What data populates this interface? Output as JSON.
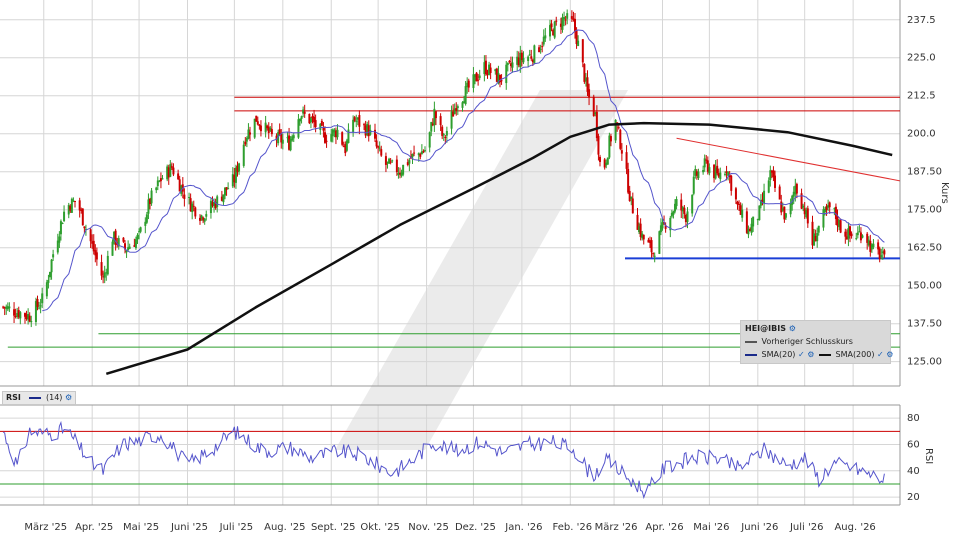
{
  "chart_data": [
    {
      "type": "candlestick",
      "symbol": "HEI@IBIS",
      "ylabel": "Kurs",
      "ylim": [
        117,
        244
      ],
      "yticks": [
        125.0,
        137.5,
        150.0,
        162.5,
        175.0,
        187.5,
        200.0,
        212.5,
        225.0,
        237.5
      ],
      "ytick_labels": [
        "125.00",
        "137.50",
        "150.00",
        "162.50",
        "175.00",
        "187.50",
        "200.0",
        "212.5",
        "225.0",
        "237.5"
      ],
      "x_start": "2025-02-01",
      "x_end": "2026-08-31",
      "xtick_labels": [
        {
          "date": "2025-03-01",
          "label": "März '25"
        },
        {
          "date": "2025-04-01",
          "label": "Apr. '25"
        },
        {
          "date": "2025-05-01",
          "label": "Mai '25"
        },
        {
          "date": "2025-06-01",
          "label": "Juni '25"
        },
        {
          "date": "2025-07-01",
          "label": "Juli '25"
        },
        {
          "date": "2025-08-01",
          "label": "Aug. '25"
        },
        {
          "date": "2025-09-01",
          "label": "Sept. '25"
        },
        {
          "date": "2025-10-01",
          "label": "Okt. '25"
        },
        {
          "date": "2025-11-01",
          "label": "Nov. '25"
        },
        {
          "date": "2025-12-01",
          "label": "Dez. '25"
        },
        {
          "date": "2026-01-01",
          "label": "Jan. '26"
        },
        {
          "date": "2026-02-01",
          "label": "Feb. '26"
        },
        {
          "date": "2026-03-01",
          "label": "März '26"
        },
        {
          "date": "2026-04-01",
          "label": "Apr. '26"
        },
        {
          "date": "2026-05-01",
          "label": "Mai '26"
        },
        {
          "date": "2026-06-01",
          "label": "Juni '26"
        },
        {
          "date": "2026-07-01",
          "label": "Juli '26"
        },
        {
          "date": "2026-08-01",
          "label": "Aug. '26"
        }
      ],
      "close_anchors": [
        {
          "date": "2025-02-03",
          "close": 143
        },
        {
          "date": "2025-02-20",
          "close": 140
        },
        {
          "date": "2025-03-01",
          "close": 146
        },
        {
          "date": "2025-03-08",
          "close": 163
        },
        {
          "date": "2025-03-15",
          "close": 176
        },
        {
          "date": "2025-03-22",
          "close": 178
        },
        {
          "date": "2025-04-03",
          "close": 160
        },
        {
          "date": "2025-04-08",
          "close": 152
        },
        {
          "date": "2025-04-14",
          "close": 166
        },
        {
          "date": "2025-04-22",
          "close": 162
        },
        {
          "date": "2025-05-01",
          "close": 166
        },
        {
          "date": "2025-05-08",
          "close": 178
        },
        {
          "date": "2025-05-15",
          "close": 185
        },
        {
          "date": "2025-05-22",
          "close": 189
        },
        {
          "date": "2025-06-01",
          "close": 178
        },
        {
          "date": "2025-06-10",
          "close": 173
        },
        {
          "date": "2025-06-20",
          "close": 178
        },
        {
          "date": "2025-07-01",
          "close": 185
        },
        {
          "date": "2025-07-08",
          "close": 199
        },
        {
          "date": "2025-07-15",
          "close": 205
        },
        {
          "date": "2025-07-25",
          "close": 199
        },
        {
          "date": "2025-08-05",
          "close": 197
        },
        {
          "date": "2025-08-12",
          "close": 207
        },
        {
          "date": "2025-08-20",
          "close": 204
        },
        {
          "date": "2025-08-28",
          "close": 199
        },
        {
          "date": "2025-09-05",
          "close": 201
        },
        {
          "date": "2025-09-10",
          "close": 195
        },
        {
          "date": "2025-09-15",
          "close": 205
        },
        {
          "date": "2025-09-25",
          "close": 201
        },
        {
          "date": "2025-10-05",
          "close": 190
        },
        {
          "date": "2025-10-15",
          "close": 188
        },
        {
          "date": "2025-10-22",
          "close": 192
        },
        {
          "date": "2025-11-01",
          "close": 195
        },
        {
          "date": "2025-11-06",
          "close": 207
        },
        {
          "date": "2025-11-12",
          "close": 198
        },
        {
          "date": "2025-11-20",
          "close": 210
        },
        {
          "date": "2025-11-28",
          "close": 215
        },
        {
          "date": "2025-12-08",
          "close": 222
        },
        {
          "date": "2025-12-18",
          "close": 218
        },
        {
          "date": "2025-12-28",
          "close": 224
        },
        {
          "date": "2026-01-08",
          "close": 226
        },
        {
          "date": "2026-01-18",
          "close": 233
        },
        {
          "date": "2026-01-28",
          "close": 238
        },
        {
          "date": "2026-02-03",
          "close": 236
        },
        {
          "date": "2026-02-08",
          "close": 225
        },
        {
          "date": "2026-02-12",
          "close": 213
        },
        {
          "date": "2026-02-17",
          "close": 206
        },
        {
          "date": "2026-02-21",
          "close": 185
        },
        {
          "date": "2026-02-26",
          "close": 197
        },
        {
          "date": "2026-03-02",
          "close": 204
        },
        {
          "date": "2026-03-06",
          "close": 195
        },
        {
          "date": "2026-03-12",
          "close": 177
        },
        {
          "date": "2026-03-19",
          "close": 166
        },
        {
          "date": "2026-03-26",
          "close": 161
        },
        {
          "date": "2026-04-02",
          "close": 170
        },
        {
          "date": "2026-04-10",
          "close": 177
        },
        {
          "date": "2026-04-16",
          "close": 173
        },
        {
          "date": "2026-04-22",
          "close": 186
        },
        {
          "date": "2026-04-29",
          "close": 190
        },
        {
          "date": "2026-05-06",
          "close": 186
        },
        {
          "date": "2026-05-12",
          "close": 189
        },
        {
          "date": "2026-05-19",
          "close": 176
        },
        {
          "date": "2026-05-26",
          "close": 168
        },
        {
          "date": "2026-06-02",
          "close": 174
        },
        {
          "date": "2026-06-09",
          "close": 187
        },
        {
          "date": "2026-06-15",
          "close": 177
        },
        {
          "date": "2026-06-20",
          "close": 171
        },
        {
          "date": "2026-06-25",
          "close": 183
        },
        {
          "date": "2026-07-01",
          "close": 175
        },
        {
          "date": "2026-07-06",
          "close": 164
        },
        {
          "date": "2026-07-12",
          "close": 172
        },
        {
          "date": "2026-07-18",
          "close": 176
        },
        {
          "date": "2026-07-25",
          "close": 168
        },
        {
          "date": "2026-08-01",
          "close": 166
        },
        {
          "date": "2026-08-08",
          "close": 168
        },
        {
          "date": "2026-08-13",
          "close": 162
        },
        {
          "date": "2026-08-19",
          "close": 160
        },
        {
          "date": "2026-08-23",
          "close": 156
        }
      ],
      "sma200_anchors": [
        {
          "date": "2025-04-10",
          "value": 121
        },
        {
          "date": "2025-06-01",
          "value": 129
        },
        {
          "date": "2025-07-15",
          "value": 143
        },
        {
          "date": "2025-09-01",
          "value": 157
        },
        {
          "date": "2025-10-15",
          "value": 170
        },
        {
          "date": "2025-12-01",
          "value": 182
        },
        {
          "date": "2026-01-08",
          "value": 192
        },
        {
          "date": "2026-02-01",
          "value": 199
        },
        {
          "date": "2026-02-26",
          "value": 203
        },
        {
          "date": "2026-03-20",
          "value": 203.5
        },
        {
          "date": "2026-05-01",
          "value": 203
        },
        {
          "date": "2026-06-20",
          "value": 200.5
        },
        {
          "date": "2026-08-01",
          "value": 196
        },
        {
          "date": "2026-08-26",
          "value": 193
        }
      ],
      "horizontal_lines": [
        {
          "value": 212.0,
          "color": "#cc0000"
        },
        {
          "value": 207.5,
          "color": "#cc0000"
        },
        {
          "value": 159.0,
          "color": "#1a3fd6"
        },
        {
          "value": 134.2,
          "color": "#2e9e2e"
        },
        {
          "value": 129.8,
          "color": "#2e9e2e"
        }
      ],
      "trendline": {
        "start": {
          "date": "2026-04-10",
          "value": 198.5
        },
        "end": {
          "date": "2026-08-31",
          "value": 184.5
        },
        "color": "#e03030"
      },
      "legend": {
        "title": "HEI@IBIS",
        "items": [
          "Vorheriger Schlusskurs",
          "SMA(20)",
          "SMA(200)"
        ]
      },
      "colors": {
        "up": "#2e9e2e",
        "down": "#cc0000",
        "sma20": "#5555cc",
        "sma200": "#111111",
        "grid": "#d6d6d6"
      }
    },
    {
      "type": "line",
      "panel": "RSI",
      "title": "RSI",
      "legend": "(14)",
      "ylabel": "RSI",
      "ylim": [
        14,
        90
      ],
      "yticks": [
        20,
        40,
        60,
        80
      ],
      "ytick_labels": [
        "20",
        "40",
        "60",
        "80"
      ],
      "reference_lines": [
        {
          "value": 70,
          "color": "#cc0000"
        },
        {
          "value": 30,
          "color": "#2e9e2e"
        }
      ],
      "rsi_anchors": [
        {
          "date": "2025-02-01",
          "value": 76
        },
        {
          "date": "2025-02-12",
          "value": 44
        },
        {
          "date": "2025-02-20",
          "value": 70
        },
        {
          "date": "2025-03-05",
          "value": 68
        },
        {
          "date": "2025-03-15",
          "value": 72
        },
        {
          "date": "2025-04-01",
          "value": 45
        },
        {
          "date": "2025-04-08",
          "value": 40
        },
        {
          "date": "2025-04-20",
          "value": 60
        },
        {
          "date": "2025-05-01",
          "value": 63
        },
        {
          "date": "2025-05-15",
          "value": 68
        },
        {
          "date": "2025-06-01",
          "value": 45
        },
        {
          "date": "2025-06-15",
          "value": 55
        },
        {
          "date": "2025-07-01",
          "value": 70
        },
        {
          "date": "2025-07-20",
          "value": 55
        },
        {
          "date": "2025-08-05",
          "value": 58
        },
        {
          "date": "2025-08-20",
          "value": 50
        },
        {
          "date": "2025-09-05",
          "value": 55
        },
        {
          "date": "2025-09-20",
          "value": 52
        },
        {
          "date": "2025-10-10",
          "value": 38
        },
        {
          "date": "2025-10-25",
          "value": 50
        },
        {
          "date": "2025-11-05",
          "value": 62
        },
        {
          "date": "2025-11-20",
          "value": 55
        },
        {
          "date": "2025-12-05",
          "value": 62
        },
        {
          "date": "2025-12-20",
          "value": 54
        },
        {
          "date": "2026-01-05",
          "value": 60
        },
        {
          "date": "2026-01-20",
          "value": 62
        },
        {
          "date": "2026-02-03",
          "value": 57
        },
        {
          "date": "2026-02-15",
          "value": 36
        },
        {
          "date": "2026-02-25",
          "value": 48
        },
        {
          "date": "2026-03-10",
          "value": 34
        },
        {
          "date": "2026-03-22",
          "value": 24
        },
        {
          "date": "2026-04-02",
          "value": 42
        },
        {
          "date": "2026-04-20",
          "value": 50
        },
        {
          "date": "2026-05-05",
          "value": 50
        },
        {
          "date": "2026-05-20",
          "value": 42
        },
        {
          "date": "2026-06-05",
          "value": 56
        },
        {
          "date": "2026-06-20",
          "value": 44
        },
        {
          "date": "2026-07-01",
          "value": 50
        },
        {
          "date": "2026-07-10",
          "value": 34
        },
        {
          "date": "2026-07-20",
          "value": 46
        },
        {
          "date": "2026-08-01",
          "value": 42
        },
        {
          "date": "2026-08-15",
          "value": 36
        },
        {
          "date": "2026-08-23",
          "value": 32
        }
      ]
    }
  ]
}
